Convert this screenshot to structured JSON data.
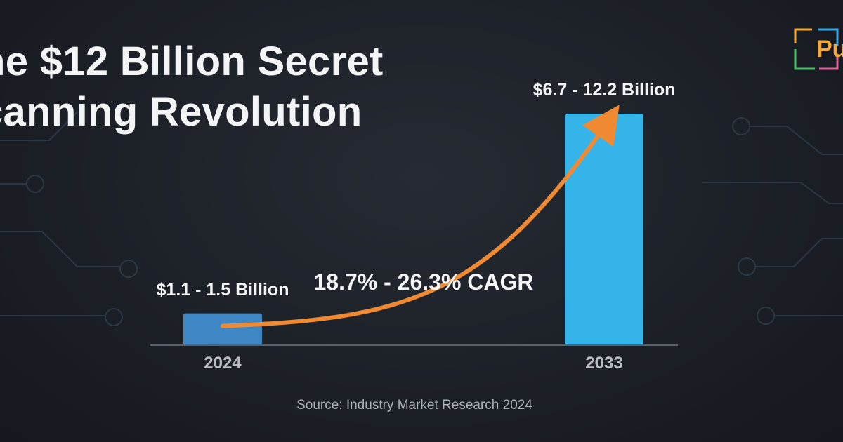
{
  "title": {
    "line1": "he $12 Billion Secret",
    "line2": "canning Revolution"
  },
  "logo": {
    "text": "Pu"
  },
  "colors": {
    "background": "#1c2027",
    "bar_2024": "#3f86c4",
    "bar_2033": "#35b4ea",
    "arrow": "#f08a32",
    "axis": "#5b616b",
    "circuit": "#3a4656"
  },
  "chart_data": {
    "type": "bar",
    "categories": [
      "2024",
      "2033"
    ],
    "values": [
      1.3,
      9.45
    ],
    "value_labels": [
      "$1.1 - 1.5 Billion",
      "$6.7 - 12.2 Billion"
    ],
    "annotation": "18.7% - 26.3% CAGR",
    "source": "Source: Industry Market Research 2024",
    "ylim": [
      0,
      9.45
    ],
    "grid": false
  }
}
